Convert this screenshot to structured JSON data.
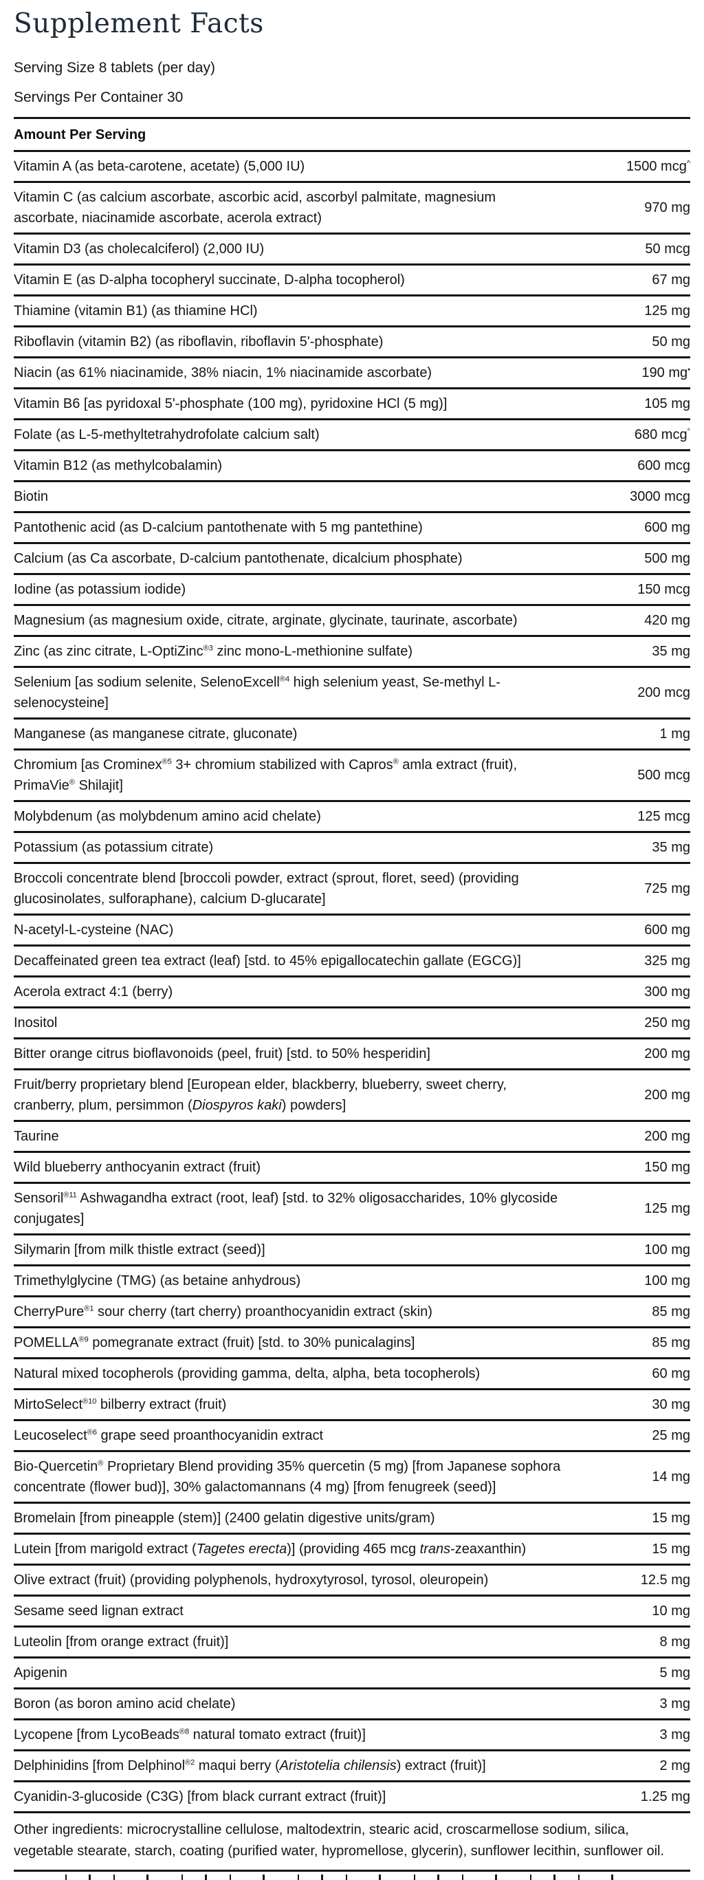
{
  "label": {
    "title": "Supplement Facts",
    "serving_size": "Serving Size 8 tablets (per day)",
    "servings_per_container": "Servings Per Container 30",
    "amount_header": "Amount Per Serving",
    "other_ingredients": "Other ingredients: microcrystalline cellulose, maltodextrin, stearic acid, croscarmellose sodium, silica, vegetable stearate, starch, coating (purified water, hypromellose, glycerin), sunflower lecithin, sunflower oil.",
    "colors": {
      "text": "#141414",
      "title": "#1e2b39",
      "rule": "#141414",
      "background": "#ffffff"
    }
  },
  "rows": [
    {
      "name": [
        {
          "t": "Vitamin A (as beta-carotene, acetate) (5,000 IU)"
        }
      ],
      "amount": "1500 mcg",
      "amount_sup": "^"
    },
    {
      "name": [
        {
          "t": "Vitamin C (as calcium ascorbate, ascorbic acid, ascorbyl palmitate, magnesium"
        },
        {
          "br": true
        },
        {
          "t": "ascorbate, niacinamide ascorbate, acerola extract)"
        }
      ],
      "amount": "970 mg",
      "amount_sup": ""
    },
    {
      "name": [
        {
          "t": "Vitamin D3 (as cholecalciferol) (2,000 IU)"
        }
      ],
      "amount": "50 mcg",
      "amount_sup": ""
    },
    {
      "name": [
        {
          "t": "Vitamin E (as D-alpha tocopheryl succinate, D-alpha tocopherol)"
        }
      ],
      "amount": "67 mg",
      "amount_sup": ""
    },
    {
      "name": [
        {
          "t": "Thiamine (vitamin B1) (as thiamine HCl)"
        }
      ],
      "amount": "125 mg",
      "amount_sup": ""
    },
    {
      "name": [
        {
          "t": "Riboflavin (vitamin B2) (as riboflavin, riboflavin 5'-phosphate)"
        }
      ],
      "amount": "50 mg",
      "amount_sup": ""
    },
    {
      "name": [
        {
          "t": "Niacin (as 61% niacinamide, 38% niacin, 1% niacinamide ascorbate)"
        }
      ],
      "amount": "190 mg",
      "amount_sup": "•"
    },
    {
      "name": [
        {
          "t": "Vitamin B6 [as pyridoxal 5'-phosphate (100 mg), pyridoxine HCl (5 mg)]"
        }
      ],
      "amount": "105 mg",
      "amount_sup": ""
    },
    {
      "name": [
        {
          "t": "Folate (as L-5-methyltetrahydrofolate calcium salt)"
        }
      ],
      "amount": "680 mcg",
      "amount_sup": "°"
    },
    {
      "name": [
        {
          "t": "Vitamin B12 (as methylcobalamin)"
        }
      ],
      "amount": "600 mcg",
      "amount_sup": ""
    },
    {
      "name": [
        {
          "t": "Biotin"
        }
      ],
      "amount": "3000 mcg",
      "amount_sup": ""
    },
    {
      "name": [
        {
          "t": "Pantothenic acid (as D-calcium pantothenate with 5 mg pantethine)"
        }
      ],
      "amount": "600 mg",
      "amount_sup": ""
    },
    {
      "name": [
        {
          "t": "Calcium (as Ca ascorbate, D-calcium pantothenate, dicalcium phosphate)"
        }
      ],
      "amount": "500 mg",
      "amount_sup": ""
    },
    {
      "name": [
        {
          "t": "Iodine (as potassium iodide)"
        }
      ],
      "amount": "150 mcg",
      "amount_sup": ""
    },
    {
      "name": [
        {
          "t": "Magnesium (as magnesium oxide, citrate, arginate, glycinate, taurinate, ascorbate)"
        }
      ],
      "amount": "420 mg",
      "amount_sup": ""
    },
    {
      "name": [
        {
          "t": "Zinc (as zinc citrate, L-OptiZinc"
        },
        {
          "sup": "®3"
        },
        {
          "t": " zinc mono-L-methionine sulfate)"
        }
      ],
      "amount": "35 mg",
      "amount_sup": ""
    },
    {
      "name": [
        {
          "t": "Selenium [as sodium selenite, SelenoExcell"
        },
        {
          "sup": "®4"
        },
        {
          "t": " high selenium yeast, Se-methyl L-"
        },
        {
          "br": true
        },
        {
          "t": "selenocysteine]"
        }
      ],
      "amount": "200 mcg",
      "amount_sup": ""
    },
    {
      "name": [
        {
          "t": "Manganese (as manganese citrate, gluconate)"
        }
      ],
      "amount": "1 mg",
      "amount_sup": ""
    },
    {
      "name": [
        {
          "t": "Chromium [as Crominex"
        },
        {
          "sup": "®5"
        },
        {
          "t": " 3+ chromium stabilized with Capros"
        },
        {
          "sup": "®"
        },
        {
          "t": " amla extract (fruit),"
        },
        {
          "br": true
        },
        {
          "t": "PrimaVie"
        },
        {
          "sup": "®"
        },
        {
          "t": " Shilajit]"
        }
      ],
      "amount": "500 mcg",
      "amount_sup": ""
    },
    {
      "name": [
        {
          "t": "Molybdenum (as molybdenum amino acid chelate)"
        }
      ],
      "amount": "125 mcg",
      "amount_sup": ""
    },
    {
      "name": [
        {
          "t": "Potassium (as potassium citrate)"
        }
      ],
      "amount": "35 mg",
      "amount_sup": ""
    },
    {
      "name": [
        {
          "t": "Broccoli concentrate blend [broccoli powder, extract (sprout, floret, seed) (providing"
        },
        {
          "br": true
        },
        {
          "t": "glucosinolates, sulforaphane), calcium D-glucarate]"
        }
      ],
      "amount": "725 mg",
      "amount_sup": ""
    },
    {
      "name": [
        {
          "t": "N-acetyl-L-cysteine (NAC)"
        }
      ],
      "amount": "600 mg",
      "amount_sup": ""
    },
    {
      "name": [
        {
          "t": "Decaffeinated green tea extract (leaf) [std. to 45% epigallocatechin gallate (EGCG)]"
        }
      ],
      "amount": "325 mg",
      "amount_sup": ""
    },
    {
      "name": [
        {
          "t": "Acerola extract 4:1 (berry)"
        }
      ],
      "amount": "300 mg",
      "amount_sup": ""
    },
    {
      "name": [
        {
          "t": "Inositol"
        }
      ],
      "amount": "250 mg",
      "amount_sup": ""
    },
    {
      "name": [
        {
          "t": "Bitter orange citrus bioflavonoids (peel, fruit) [std. to 50% hesperidin]"
        }
      ],
      "amount": "200 mg",
      "amount_sup": ""
    },
    {
      "name": [
        {
          "t": "Fruit/berry proprietary blend [European elder, blackberry, blueberry, sweet cherry,"
        },
        {
          "br": true
        },
        {
          "t": "cranberry, plum, persimmon ("
        },
        {
          "i": "Diospyros kaki"
        },
        {
          "t": ") powders]"
        }
      ],
      "amount": "200 mg",
      "amount_sup": ""
    },
    {
      "name": [
        {
          "t": "Taurine"
        }
      ],
      "amount": "200 mg",
      "amount_sup": ""
    },
    {
      "name": [
        {
          "t": "Wild blueberry anthocyanin extract (fruit)"
        }
      ],
      "amount": "150 mg",
      "amount_sup": ""
    },
    {
      "name": [
        {
          "t": "Sensoril"
        },
        {
          "sup": "®11"
        },
        {
          "t": " Ashwagandha extract (root, leaf) [std. to 32% oligosaccharides, 10% glycoside"
        },
        {
          "br": true
        },
        {
          "t": "conjugates]"
        }
      ],
      "amount": "125 mg",
      "amount_sup": ""
    },
    {
      "name": [
        {
          "t": "Silymarin [from milk thistle extract (seed)]"
        }
      ],
      "amount": "100 mg",
      "amount_sup": ""
    },
    {
      "name": [
        {
          "t": "Trimethylglycine (TMG) (as betaine anhydrous)"
        }
      ],
      "amount": "100 mg",
      "amount_sup": ""
    },
    {
      "name": [
        {
          "t": "CherryPure"
        },
        {
          "sup": "®1"
        },
        {
          "t": " sour cherry (tart cherry) proanthocyanidin extract (skin)"
        }
      ],
      "amount": "85 mg",
      "amount_sup": ""
    },
    {
      "name": [
        {
          "t": "POMELLA"
        },
        {
          "sup": "®9"
        },
        {
          "t": " pomegranate extract (fruit) [std. to 30% punicalagins]"
        }
      ],
      "amount": "85 mg",
      "amount_sup": ""
    },
    {
      "name": [
        {
          "t": "Natural mixed tocopherols (providing gamma, delta, alpha, beta tocopherols)"
        }
      ],
      "amount": "60 mg",
      "amount_sup": ""
    },
    {
      "name": [
        {
          "t": "MirtoSelect"
        },
        {
          "sup": "®10"
        },
        {
          "t": " bilberry extract (fruit)"
        }
      ],
      "amount": "30 mg",
      "amount_sup": ""
    },
    {
      "name": [
        {
          "t": "Leucoselect"
        },
        {
          "sup": "®6"
        },
        {
          "t": " grape seed proanthocyanidin extract"
        }
      ],
      "amount": "25 mg",
      "amount_sup": ""
    },
    {
      "name": [
        {
          "t": "Bio-Quercetin"
        },
        {
          "sup": "®"
        },
        {
          "t": " Proprietary Blend providing 35% quercetin (5 mg) [from Japanese sophora"
        },
        {
          "br": true
        },
        {
          "t": "concentrate (flower bud)], 30% galactomannans (4 mg) [from fenugreek (seed)]"
        }
      ],
      "amount": "14 mg",
      "amount_sup": ""
    },
    {
      "name": [
        {
          "t": "Bromelain [from pineapple (stem)] (2400 gelatin digestive units/gram)"
        }
      ],
      "amount": "15 mg",
      "amount_sup": ""
    },
    {
      "name": [
        {
          "t": "Lutein [from marigold extract ("
        },
        {
          "i": "Tagetes erecta"
        },
        {
          "t": ")] (providing 465 mcg "
        },
        {
          "i": "trans"
        },
        {
          "t": "-zeaxanthin)"
        }
      ],
      "amount": "15 mg",
      "amount_sup": ""
    },
    {
      "name": [
        {
          "t": "Olive extract (fruit) (providing polyphenols, hydroxytyrosol, tyrosol, oleuropein)"
        }
      ],
      "amount": "12.5 mg",
      "amount_sup": ""
    },
    {
      "name": [
        {
          "t": "Sesame seed lignan extract"
        }
      ],
      "amount": "10 mg",
      "amount_sup": ""
    },
    {
      "name": [
        {
          "t": "Luteolin [from orange extract (fruit)]"
        }
      ],
      "amount": "8 mg",
      "amount_sup": ""
    },
    {
      "name": [
        {
          "t": "Apigenin"
        }
      ],
      "amount": "5 mg",
      "amount_sup": ""
    },
    {
      "name": [
        {
          "t": "Boron (as boron amino acid chelate)"
        }
      ],
      "amount": "3 mg",
      "amount_sup": ""
    },
    {
      "name": [
        {
          "t": "Lycopene [from LycoBeads"
        },
        {
          "sup": "®8"
        },
        {
          "t": " natural tomato extract (fruit)]"
        }
      ],
      "amount": "3 mg",
      "amount_sup": ""
    },
    {
      "name": [
        {
          "t": "Delphinidins [from Delphinol"
        },
        {
          "sup": "®2"
        },
        {
          "t": " maqui berry ("
        },
        {
          "i": "Aristotelia chilensis"
        },
        {
          "t": ") extract (fruit)]"
        }
      ],
      "amount": "2 mg",
      "amount_sup": ""
    },
    {
      "name": [
        {
          "t": "Cyanidin-3-glucoside (C3G) [from black currant extract (fruit)]"
        }
      ],
      "amount": "1.25 mg",
      "amount_sup": ""
    }
  ]
}
